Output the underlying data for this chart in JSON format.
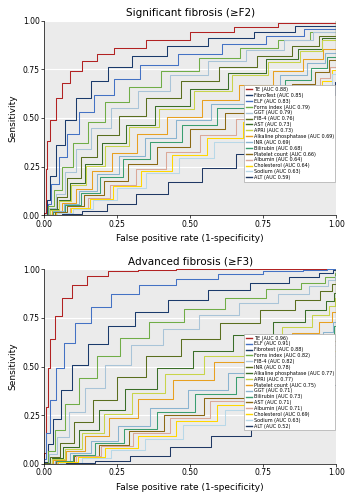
{
  "panel1_title": "Significant fibrosis (≥F2)",
  "panel2_title": "Advanced fibrosis (≥F3)",
  "xlabel": "False positive rate (1-specificity)",
  "ylabel": "Sensitivity",
  "panel1_legend": [
    {
      "label": "TE (AUC 0.88)",
      "color": "#b22222"
    },
    {
      "label": "FibroTest (AUC 0.85)",
      "color": "#1a3a6b"
    },
    {
      "label": "ELF (AUC 0.83)",
      "color": "#4472c4"
    },
    {
      "label": "Forns index (AUC 0.79)",
      "color": "#70ad47"
    },
    {
      "label": "GGT (AUC 0.79)",
      "color": "#a9c4d8"
    },
    {
      "label": "FIB-4 (AUC 0.76)",
      "color": "#5a6e1e"
    },
    {
      "label": "AST (AUC 0.73)",
      "color": "#3a6e28"
    },
    {
      "label": "APRI (AUC 0.73)",
      "color": "#c8d44a"
    },
    {
      "label": "Alkaline phosphatase (AUC 0.69)",
      "color": "#e8a020"
    },
    {
      "label": "INR (AUC 0.69)",
      "color": "#8ab4d0"
    },
    {
      "label": "Bilirubin (AUC 0.68)",
      "color": "#3a9e70"
    },
    {
      "label": "Platelet count (AUC 0.66)",
      "color": "#8b6914"
    },
    {
      "label": "Albumin (AUC 0.64)",
      "color": "#dba898"
    },
    {
      "label": "Cholesterol (AUC 0.64)",
      "color": "#ffd700"
    },
    {
      "label": "Sodium (AUC 0.63)",
      "color": "#b8d8e8"
    },
    {
      "label": "ALT (AUC 0.59)",
      "color": "#1f3864"
    }
  ],
  "panel2_legend": [
    {
      "label": "TE (AUC 0.96)",
      "color": "#b22222"
    },
    {
      "label": "ELF (AUC 0.91)",
      "color": "#4472c4"
    },
    {
      "label": "Fibrotest (AUC 0.88)",
      "color": "#1a3a6b"
    },
    {
      "label": "Forns index (AUC 0.82)",
      "color": "#70ad47"
    },
    {
      "label": "FIB-4 (AUC 0.82)",
      "color": "#a9c4d8"
    },
    {
      "label": "INR (AUC 0.78)",
      "color": "#5a6e1e"
    },
    {
      "label": "Alkaline phosphatase (AUC 0.77)",
      "color": "#3a6e28"
    },
    {
      "label": "APRI (AUC 0.77)",
      "color": "#c8d44a"
    },
    {
      "label": "Platelet count (AUC 0.75)",
      "color": "#e8a020"
    },
    {
      "label": "GGT (AUC 0.71)",
      "color": "#8ab4d0"
    },
    {
      "label": "Bilirubin (AUC 0.73)",
      "color": "#3a9e70"
    },
    {
      "label": "AST (AUC 0.71)",
      "color": "#8b6914"
    },
    {
      "label": "Albumin (AUC 0.71)",
      "color": "#dba898"
    },
    {
      "label": "Cholesterol (AUC 0.69)",
      "color": "#ffd700"
    },
    {
      "label": "Sodium (AUC 0.63)",
      "color": "#b8d8e8"
    },
    {
      "label": "ALT (AUC 0.52)",
      "color": "#1f3864"
    }
  ],
  "bg_color": "#ebebeb",
  "fig_bg": "#ffffff",
  "gridline_color": "#ffffff"
}
